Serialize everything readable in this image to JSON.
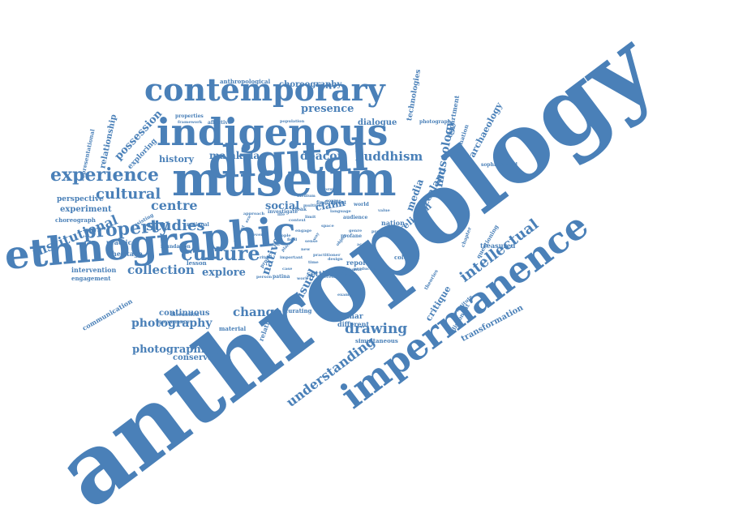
{
  "colors": {
    "word": "#4a80b8",
    "background": "#ffffff"
  },
  "words": [
    "anthropology",
    "impermanence",
    "museum",
    "indigenous",
    "digital",
    "ethnographic",
    "contemporary",
    "experience",
    "culture",
    "intellectual",
    "property",
    "institutional",
    "studies",
    "cultural",
    "collection",
    "understanding",
    "drawing",
    "photography",
    "change",
    "visual",
    "explore",
    "centre",
    "museology",
    "zealand",
    "buddhism",
    "deacon",
    "malakula",
    "presence",
    "possession",
    "history",
    "social",
    "claim",
    "media",
    "religion",
    "archaeology",
    "transformation",
    "critique",
    "photographic",
    "conservation",
    "continuous",
    "choreography",
    "anthropological",
    "relationship",
    "representational",
    "exploring",
    "perspective",
    "choreograph",
    "experiment",
    "practice",
    "heritage",
    "intervention",
    "engagement",
    "communication",
    "governance",
    "discussion",
    "material",
    "lesson",
    "foundation",
    "national",
    "resisting",
    "native",
    "settler",
    "report",
    "geismar",
    "different",
    "curating",
    "relation",
    "properties",
    "framework",
    "affective",
    "population",
    "dialogue",
    "technologies",
    "photograph",
    "department",
    "imagination",
    "sophisticated",
    "treasured",
    "questioning",
    "dissonant",
    "simultaneous",
    "colonial",
    "constitute",
    "investigate",
    "cloak",
    "finding",
    "effect",
    "world",
    "nation",
    "audience",
    "profane",
    "display",
    "patina",
    "project",
    "important",
    "person",
    "tribunal",
    "theories",
    "chapter",
    "multiple",
    "language",
    "way",
    "limit",
    "form",
    "engage",
    "space",
    "place",
    "era",
    "people",
    "new",
    "time",
    "object",
    "genre",
    "artist",
    "practitioner",
    "context",
    "source",
    "medium",
    "moment",
    "life",
    "account",
    "case",
    "work",
    "interest",
    "example",
    "field",
    "sense",
    "design",
    "ritual",
    "process",
    "production",
    "approach",
    "value",
    "image",
    "event",
    "narrative",
    "term",
    "aspect",
    "idea"
  ]
}
